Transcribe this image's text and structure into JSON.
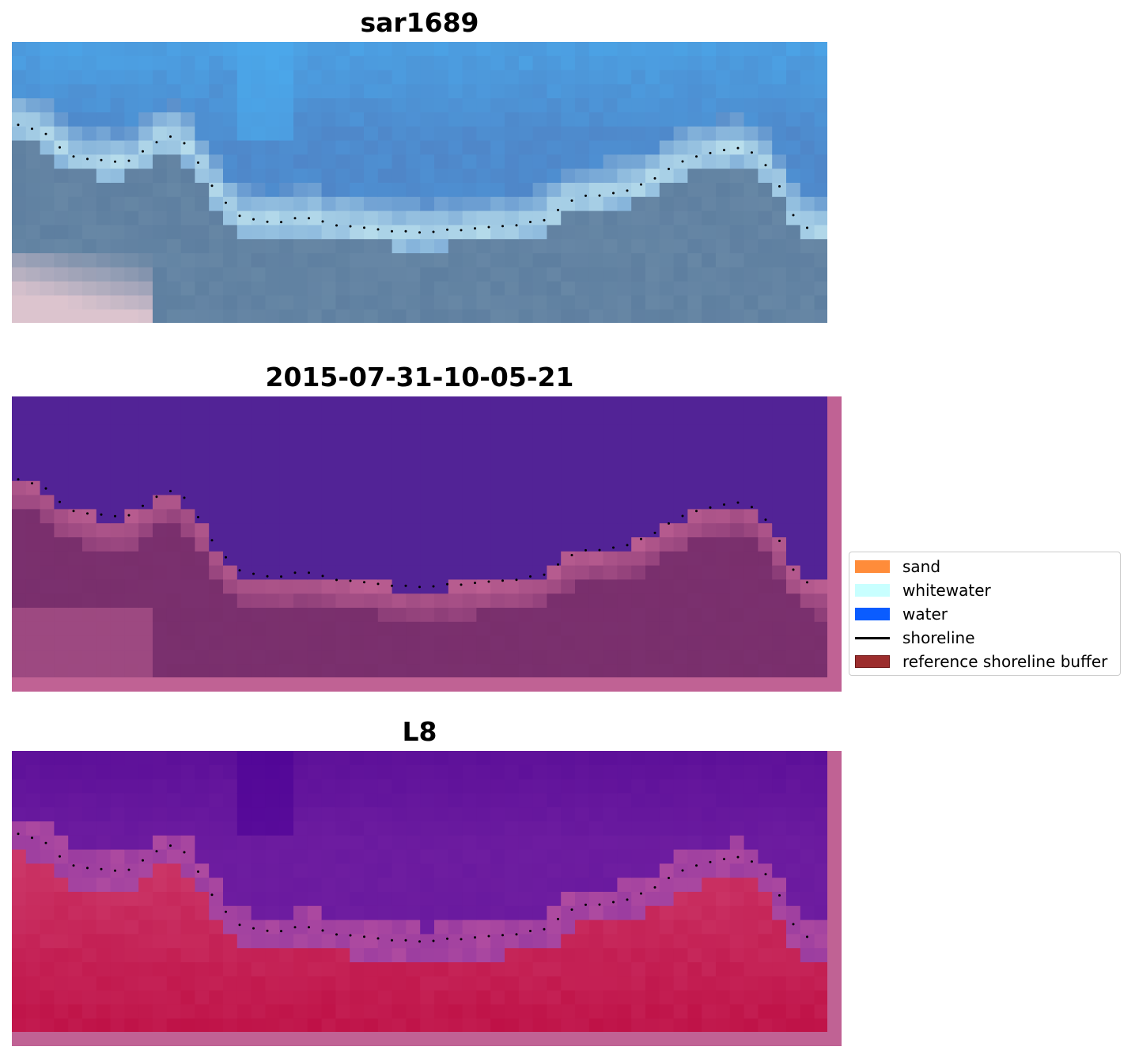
{
  "panels": [
    {
      "title": "sar1689",
      "kind": "rgb"
    },
    {
      "title": "2015-07-31-10-05-21",
      "kind": "classified"
    },
    {
      "title": "L8",
      "kind": "index"
    }
  ],
  "legend": {
    "items": [
      {
        "label": "sand",
        "color": "#ff8c3a",
        "type": "patch"
      },
      {
        "label": "whitewater",
        "color": "#c8ffff",
        "type": "patch"
      },
      {
        "label": "water",
        "color": "#0a5cff",
        "type": "patch"
      },
      {
        "label": "shoreline",
        "color": "#000000",
        "type": "line"
      },
      {
        "label": "reference shoreline buffer",
        "color": "#9c2d2d",
        "type": "patch"
      }
    ]
  },
  "colors": {
    "rgb_sky": "#4f86c8",
    "rgb_bright_blue": "#4aacef",
    "rgb_whitewater": "#bfe3ee",
    "rgb_land": "#5e7fa0",
    "rgb_pink_sand": "#dcc4ce",
    "class_water": "#522396",
    "class_land": "#7a306e",
    "class_buffer": "#c06294",
    "index_water": "#6e1da0",
    "index_land": "#c93062",
    "shoreline_points": "#000000"
  }
}
